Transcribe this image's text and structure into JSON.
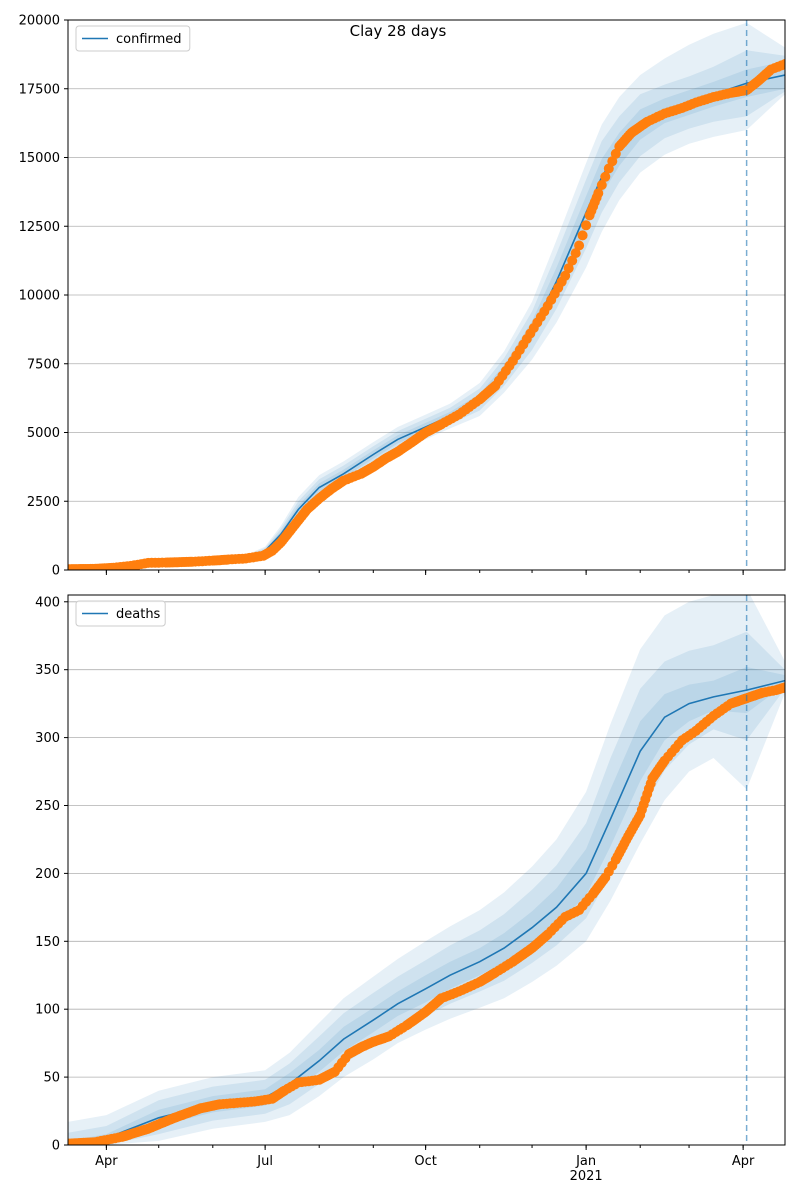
{
  "figure": {
    "title": "Clay 28 days",
    "background": "#ffffff"
  },
  "colors": {
    "line": "#1f77b4",
    "points": "#ff7f0e",
    "band": "#1f77b4",
    "grid": "#b0b0b0",
    "vline": "#1f77b4"
  },
  "chart_data": [
    {
      "type": "line",
      "title": "Clay 28 days",
      "legend": {
        "labels": [
          "confirmed"
        ],
        "placement": "top-left"
      },
      "xlim": [
        "2020-03-10",
        "2021-04-25"
      ],
      "ylim": [
        0,
        20000
      ],
      "y_ticks": [
        0,
        2500,
        5000,
        7500,
        10000,
        12500,
        15000,
        17500,
        20000
      ],
      "x_ticks": [
        {
          "date": "2020-04-01",
          "label": ""
        },
        {
          "date": "2020-07-01",
          "label": ""
        },
        {
          "date": "2020-10-01",
          "label": ""
        },
        {
          "date": "2021-01-01",
          "label": ""
        },
        {
          "date": "2021-04-01",
          "label": ""
        }
      ],
      "grid": "horizontal",
      "forecast_start": "2021-04-03",
      "model": {
        "name": "confirmed",
        "x": [
          "2020-03-10",
          "2020-04-01",
          "2020-05-01",
          "2020-06-01",
          "2020-06-20",
          "2020-07-01",
          "2020-07-10",
          "2020-07-20",
          "2020-08-01",
          "2020-08-15",
          "2020-09-01",
          "2020-09-15",
          "2020-10-01",
          "2020-10-15",
          "2020-11-01",
          "2020-11-15",
          "2020-12-01",
          "2020-12-15",
          "2021-01-01",
          "2021-01-10",
          "2021-01-20",
          "2021-02-01",
          "2021-02-15",
          "2021-03-01",
          "2021-03-15",
          "2021-04-03",
          "2021-04-25"
        ],
        "y": [
          0,
          80,
          250,
          350,
          450,
          700,
          1300,
          2200,
          3000,
          3500,
          4200,
          4750,
          5200,
          5600,
          6200,
          7200,
          8700,
          10500,
          13000,
          14300,
          15300,
          16200,
          16700,
          17000,
          17300,
          17700,
          18000
        ],
        "band1_lo": [
          0,
          70,
          230,
          330,
          420,
          650,
          1200,
          2050,
          2850,
          3350,
          4050,
          4600,
          5050,
          5450,
          6000,
          6950,
          8350,
          10000,
          12400,
          13650,
          14700,
          15650,
          16250,
          16550,
          16850,
          17200,
          17500
        ],
        "band1_hi": [
          0,
          90,
          270,
          370,
          480,
          750,
          1400,
          2350,
          3150,
          3650,
          4350,
          4900,
          5350,
          5750,
          6400,
          7450,
          9050,
          11000,
          13600,
          14950,
          15900,
          16750,
          17150,
          17450,
          17750,
          18200,
          18500
        ],
        "band2_lo": [
          0,
          55,
          210,
          300,
          390,
          600,
          1100,
          1900,
          2700,
          3200,
          3900,
          4450,
          4900,
          5300,
          5800,
          6700,
          8000,
          9500,
          11700,
          13000,
          14100,
          15050,
          15700,
          16050,
          16300,
          16500,
          17400
        ],
        "band2_hi": [
          0,
          105,
          290,
          400,
          510,
          800,
          1500,
          2500,
          3300,
          3800,
          4500,
          5050,
          5500,
          5900,
          6600,
          7700,
          9400,
          11500,
          14200,
          15600,
          16500,
          17300,
          17650,
          17950,
          18300,
          18900,
          18700
        ],
        "band3_lo": [
          0,
          40,
          190,
          280,
          360,
          550,
          1000,
          1750,
          2550,
          3050,
          3750,
          4300,
          4750,
          5150,
          5600,
          6450,
          7650,
          9000,
          11000,
          12300,
          13450,
          14450,
          15100,
          15500,
          15750,
          16000,
          17300
        ],
        "band3_hi": [
          0,
          120,
          310,
          420,
          540,
          850,
          1600,
          2650,
          3450,
          3950,
          4650,
          5200,
          5650,
          6050,
          6800,
          7950,
          9750,
          12000,
          14800,
          16200,
          17200,
          18000,
          18600,
          19100,
          19500,
          19900,
          19000
        ]
      },
      "observed": {
        "x": [
          "2020-03-10",
          "2020-03-25",
          "2020-04-05",
          "2020-04-15",
          "2020-04-25",
          "2020-05-05",
          "2020-05-20",
          "2020-06-01",
          "2020-06-10",
          "2020-06-20",
          "2020-06-30",
          "2020-07-05",
          "2020-07-10",
          "2020-07-15",
          "2020-07-20",
          "2020-07-25",
          "2020-08-01",
          "2020-08-08",
          "2020-08-15",
          "2020-08-25",
          "2020-09-01",
          "2020-09-08",
          "2020-09-15",
          "2020-09-22",
          "2020-10-01",
          "2020-10-10",
          "2020-10-20",
          "2020-11-01",
          "2020-11-10",
          "2020-11-20",
          "2020-11-30",
          "2020-12-10",
          "2020-12-20",
          "2020-12-28",
          "2021-01-03",
          "2021-01-08",
          "2021-01-14",
          "2021-01-20",
          "2021-01-27",
          "2021-02-05",
          "2021-02-15",
          "2021-02-25",
          "2021-03-05",
          "2021-03-15",
          "2021-03-25",
          "2021-04-03",
          "2021-04-10",
          "2021-04-17",
          "2021-04-25"
        ],
        "y": [
          30,
          40,
          80,
          150,
          260,
          270,
          300,
          340,
          380,
          420,
          520,
          700,
          1000,
          1400,
          1800,
          2200,
          2600,
          2950,
          3250,
          3500,
          3750,
          4050,
          4300,
          4600,
          5000,
          5300,
          5650,
          6200,
          6700,
          7600,
          8600,
          9600,
          10700,
          11800,
          12900,
          13700,
          14600,
          15400,
          15900,
          16300,
          16600,
          16800,
          17000,
          17200,
          17350,
          17450,
          17800,
          18200,
          18400
        ]
      }
    },
    {
      "type": "line",
      "title": "",
      "legend": {
        "labels": [
          "deaths"
        ],
        "placement": "top-left"
      },
      "xlim": [
        "2020-03-10",
        "2021-04-25"
      ],
      "ylim": [
        0,
        405
      ],
      "y_ticks": [
        0,
        50,
        100,
        150,
        200,
        250,
        300,
        350,
        400
      ],
      "x_ticks": [
        {
          "date": "2020-04-01",
          "label": "Apr"
        },
        {
          "date": "2020-07-01",
          "label": "Jul"
        },
        {
          "date": "2020-10-01",
          "label": "Oct"
        },
        {
          "date": "2021-01-01",
          "label": "Jan\n2021"
        },
        {
          "date": "2021-04-01",
          "label": "Apr"
        }
      ],
      "grid": "horizontal",
      "forecast_start": "2021-04-03",
      "model": {
        "name": "deaths",
        "x": [
          "2020-03-10",
          "2020-04-01",
          "2020-05-01",
          "2020-06-01",
          "2020-07-01",
          "2020-07-15",
          "2020-08-01",
          "2020-08-15",
          "2020-09-01",
          "2020-09-15",
          "2020-10-01",
          "2020-10-15",
          "2020-11-01",
          "2020-11-15",
          "2020-12-01",
          "2020-12-15",
          "2021-01-01",
          "2021-01-15",
          "2021-02-01",
          "2021-02-15",
          "2021-03-01",
          "2021-03-15",
          "2021-04-03",
          "2021-04-25"
        ],
        "y": [
          0,
          5,
          20,
          30,
          35,
          45,
          62,
          78,
          92,
          104,
          115,
          125,
          135,
          145,
          160,
          175,
          200,
          240,
          290,
          315,
          325,
          330,
          335,
          342
        ],
        "band1_lo": [
          0,
          2,
          14,
          24,
          29,
          38,
          54,
          69,
          83,
          95,
          105,
          115,
          125,
          134,
          148,
          162,
          184,
          220,
          268,
          298,
          312,
          320,
          318,
          339
        ],
        "band1_hi": [
          3,
          8,
          26,
          36,
          41,
          53,
          70,
          87,
          101,
          113,
          125,
          135,
          145,
          156,
          172,
          189,
          218,
          262,
          312,
          332,
          339,
          342,
          352,
          346
        ],
        "band2_lo": [
          0,
          0,
          8,
          18,
          23,
          30,
          45,
          60,
          73,
          85,
          95,
          104,
          113,
          121,
          134,
          147,
          167,
          200,
          244,
          276,
          295,
          306,
          298,
          336
        ],
        "band2_hi": [
          9,
          14,
          33,
          43,
          48,
          60,
          80,
          97,
          112,
          124,
          136,
          147,
          158,
          170,
          188,
          206,
          237,
          285,
          336,
          356,
          364,
          368,
          378,
          350
        ],
        "band3_lo": [
          0,
          0,
          3,
          12,
          17,
          22,
          36,
          50,
          63,
          75,
          85,
          93,
          101,
          108,
          120,
          132,
          150,
          180,
          222,
          254,
          275,
          285,
          262,
          333
        ],
        "band3_hi": [
          17,
          22,
          40,
          50,
          55,
          68,
          90,
          108,
          124,
          137,
          150,
          161,
          173,
          186,
          205,
          225,
          260,
          310,
          365,
          390,
          400,
          405,
          410,
          356
        ]
      },
      "observed": {
        "x": [
          "2020-03-10",
          "2020-03-25",
          "2020-04-10",
          "2020-04-25",
          "2020-05-10",
          "2020-05-25",
          "2020-06-05",
          "2020-06-15",
          "2020-06-25",
          "2020-07-05",
          "2020-07-12",
          "2020-07-20",
          "2020-08-01",
          "2020-08-10",
          "2020-08-18",
          "2020-08-25",
          "2020-09-01",
          "2020-09-10",
          "2020-09-20",
          "2020-10-01",
          "2020-10-10",
          "2020-10-20",
          "2020-11-01",
          "2020-11-10",
          "2020-11-20",
          "2020-12-01",
          "2020-12-10",
          "2020-12-20",
          "2020-12-28",
          "2021-01-05",
          "2021-01-12",
          "2021-01-18",
          "2021-01-25",
          "2021-02-01",
          "2021-02-08",
          "2021-02-15",
          "2021-02-25",
          "2021-03-05",
          "2021-03-15",
          "2021-03-25",
          "2021-04-03",
          "2021-04-12",
          "2021-04-20",
          "2021-04-25"
        ],
        "y": [
          1,
          2,
          6,
          12,
          20,
          27,
          30,
          31,
          32,
          34,
          40,
          46,
          48,
          54,
          67,
          72,
          76,
          80,
          88,
          98,
          108,
          113,
          120,
          127,
          135,
          145,
          155,
          168,
          173,
          185,
          197,
          210,
          227,
          243,
          270,
          283,
          298,
          305,
          316,
          325,
          329,
          333,
          335,
          337
        ]
      }
    }
  ]
}
